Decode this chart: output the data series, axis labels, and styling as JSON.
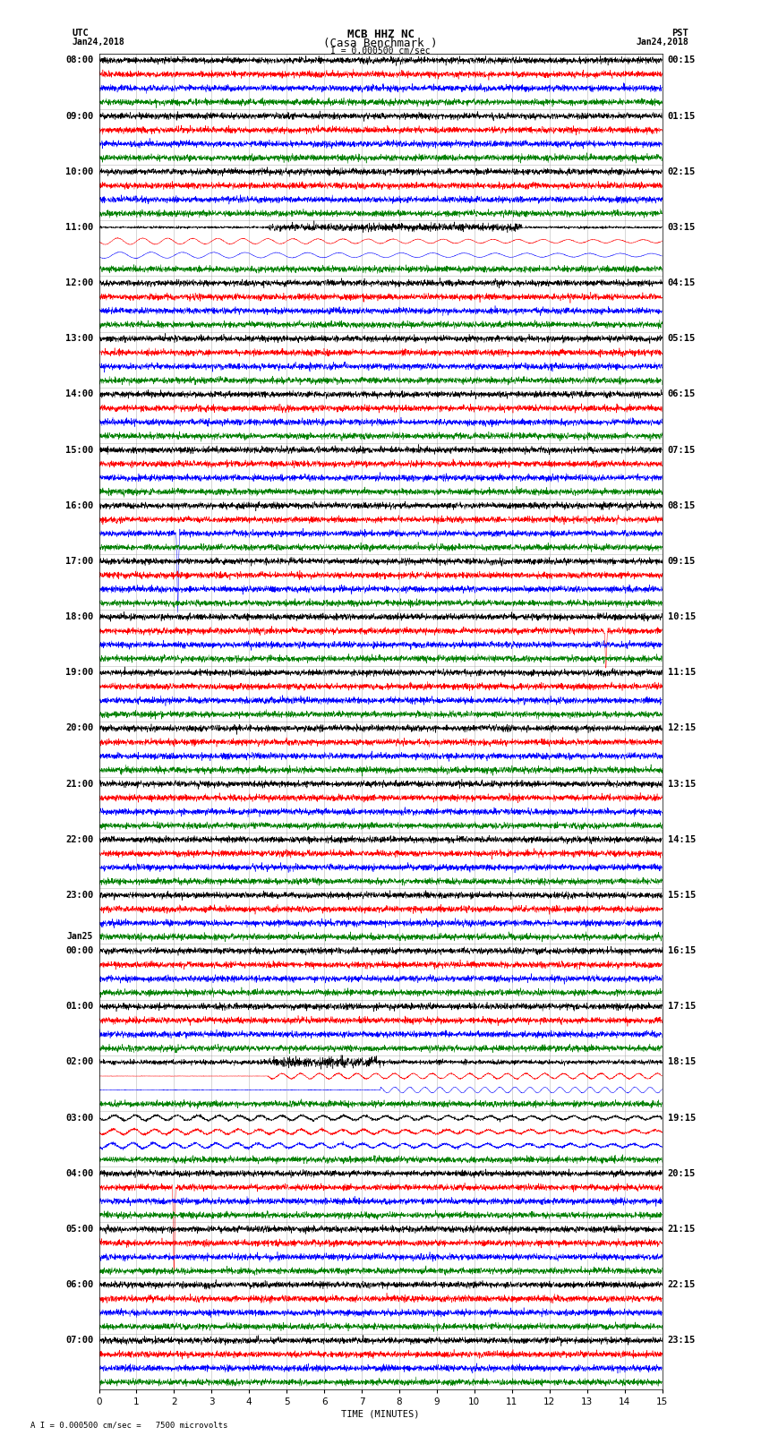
{
  "title_line1": "MCB HHZ NC",
  "title_line2": "(Casa Benchmark )",
  "title_line3": "I = 0.000500 cm/sec",
  "left_header_line1": "UTC",
  "left_header_line2": "Jan24,2018",
  "right_header_line1": "PST",
  "right_header_line2": "Jan24,2018",
  "footer_text": "A I = 0.000500 cm/sec =   7500 microvolts",
  "xlabel": "TIME (MINUTES)",
  "utc_times": [
    "08:00",
    "09:00",
    "10:00",
    "11:00",
    "12:00",
    "13:00",
    "14:00",
    "15:00",
    "16:00",
    "17:00",
    "18:00",
    "19:00",
    "20:00",
    "21:00",
    "22:00",
    "23:00",
    "Jan25\n00:00",
    "01:00",
    "02:00",
    "03:00",
    "04:00",
    "05:00",
    "06:00",
    "07:00"
  ],
  "pst_times": [
    "00:15",
    "01:15",
    "02:15",
    "03:15",
    "04:15",
    "05:15",
    "06:15",
    "07:15",
    "08:15",
    "09:15",
    "10:15",
    "11:15",
    "12:15",
    "13:15",
    "14:15",
    "15:15",
    "16:15",
    "17:15",
    "18:15",
    "19:15",
    "20:15",
    "21:15",
    "22:15",
    "23:15"
  ],
  "colors": [
    "black",
    "red",
    "blue",
    "green"
  ],
  "n_rows": 24,
  "n_traces_per_row": 4,
  "minutes": 15,
  "background_color": "white",
  "grid_color": "#888888",
  "label_fontsize": 7.5,
  "title_fontsize": 9,
  "n_points": 3000
}
